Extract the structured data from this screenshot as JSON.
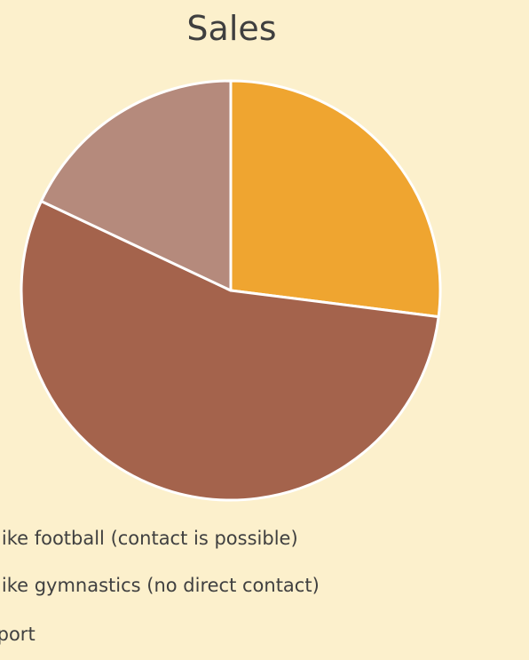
{
  "chart_data": {
    "type": "pie",
    "title": "Sales",
    "series": [
      {
        "values": [
          27,
          55,
          18
        ]
      }
    ],
    "categories": [
      "Sports like football (contact is possible)",
      "Sports like gymnastics (no direct contact)",
      "No sport"
    ],
    "legend_visible_text": [
      "orts like football (contact is possible)",
      "orts like gymnastics (no direct contact)",
      "sport"
    ],
    "colors": [
      "#efa530",
      "#a4634c",
      "#b58a7c"
    ],
    "legend_position": "bottom"
  }
}
